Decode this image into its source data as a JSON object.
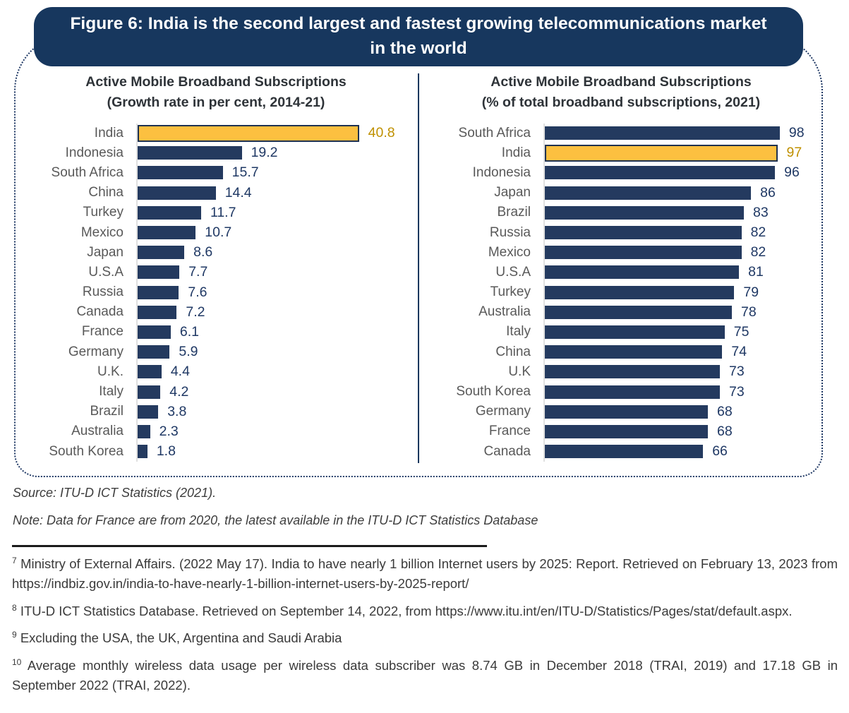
{
  "figure": {
    "title": "Figure 6: India is the second largest and fastest growing telecommunications market in the world",
    "source": "Source: ITU-D ICT Statistics (2021).",
    "note": "Note: Data for France are from 2020, the latest available in the ITU-D ICT Statistics Database"
  },
  "chart_data": [
    {
      "type": "bar",
      "orientation": "horizontal",
      "title": "Active Mobile Broadband Subscriptions",
      "subtitle": "(Growth rate in per cent, 2014-21)",
      "categories": [
        "India",
        "Indonesia",
        "South Africa",
        "China",
        "Turkey",
        "Mexico",
        "Japan",
        "U.S.A",
        "Russia",
        "Canada",
        "France",
        "Germany",
        "U.K.",
        "Italy",
        "Brazil",
        "Australia",
        "South Korea"
      ],
      "values": [
        40.8,
        19.2,
        15.7,
        14.4,
        11.7,
        10.7,
        8.6,
        7.7,
        7.6,
        7.2,
        6.1,
        5.9,
        4.4,
        4.2,
        3.8,
        2.3,
        1.8
      ],
      "highlight_category": "India",
      "xlim": [
        0,
        45
      ],
      "grid": false,
      "legend": false,
      "value_labels": true
    },
    {
      "type": "bar",
      "orientation": "horizontal",
      "title": "Active Mobile Broadband Subscriptions",
      "subtitle": "(% of total broadband subscriptions, 2021)",
      "categories": [
        "South Africa",
        "India",
        "Indonesia",
        "Japan",
        "Brazil",
        "Russia",
        "Mexico",
        "U.S.A",
        "Turkey",
        "Australia",
        "Italy",
        "China",
        "U.K",
        "South Korea",
        "Germany",
        "France",
        "Canada"
      ],
      "values": [
        98,
        97,
        96,
        86,
        83,
        82,
        82,
        81,
        79,
        78,
        75,
        74,
        73,
        73,
        68,
        68,
        66
      ],
      "highlight_category": "India",
      "xlim": [
        0,
        100
      ],
      "grid": false,
      "legend": false,
      "value_labels": true
    }
  ],
  "footnotes": [
    {
      "marker": "7",
      "text": " Ministry of External Affairs. (2022 May 17). India to have nearly 1 billion Internet users by 2025: Report. Retrieved on February 13, 2023 from https://indbiz.gov.in/india-to-have-nearly-1-billion-internet-users-by-2025-report/"
    },
    {
      "marker": "8",
      "text": " ITU-D ICT Statistics Database. Retrieved on September 14, 2022, from https://www.itu.int/en/ITU-D/Statistics/Pages/stat/default.aspx."
    },
    {
      "marker": "9",
      "text": " Excluding the USA, the UK, Argentina and Saudi Arabia"
    },
    {
      "marker": "10",
      "text": " Average monthly wireless data usage per wireless data subscriber was 8.74 GB in December 2018 (TRAI, 2019) and 17.18 GB in September 2022 (TRAI, 2022)."
    }
  ],
  "colors": {
    "banner_navy": "#17375E",
    "bar_navy": "#243A5F",
    "highlight_yellow": "#FCC040",
    "highlight_border": "#1F3250",
    "highlight_value_gold": "#BF9000",
    "value_navy": "#1F3864",
    "category_gray": "#595959",
    "dotted_border_navy": "#1F3864"
  }
}
